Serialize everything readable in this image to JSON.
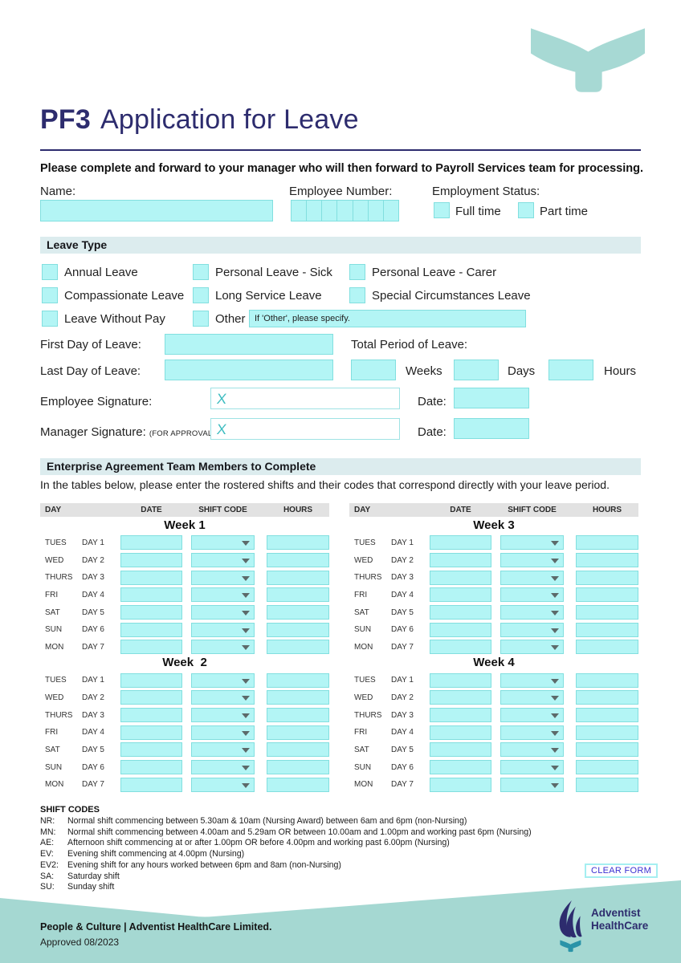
{
  "page": {
    "title_code": "PF3",
    "title_text": "Application for Leave",
    "intro": "Please complete and forward to your manager who will then forward to Payroll Services team for processing."
  },
  "personal": {
    "name_label": "Name:",
    "employee_number_label": "Employee Number:",
    "employee_number_cells": 7,
    "employment_status_label": "Employment Status:",
    "full_time_label": "Full time",
    "part_time_label": "Part time"
  },
  "leave_type": {
    "header": "Leave Type",
    "options": [
      "Annual Leave",
      "Personal Leave - Sick",
      "Personal Leave - Carer",
      "Compassionate Leave",
      "Long Service Leave",
      "Special Circumstances Leave",
      "Leave Without Pay",
      "Other"
    ],
    "other_placeholder": "If 'Other', please specify."
  },
  "dates": {
    "first_day_label": "First Day of Leave:",
    "last_day_label": "Last Day of Leave:",
    "total_period_label": "Total Period of Leave:",
    "weeks_label": "Weeks",
    "days_label": "Days",
    "hours_label": "Hours"
  },
  "signatures": {
    "employee_label": "Employee Signature:",
    "manager_label": "Manager Signature:",
    "manager_note": "(FOR APPROVAL)",
    "date_label": "Date:",
    "x_mark": "X"
  },
  "roster": {
    "header": "Enterprise Agreement Team Members to Complete",
    "instructions": "In the tables below, please enter the rostered shifts and their codes that correspond directly with your leave period.",
    "columns": [
      "DAY",
      "DATE",
      "SHIFT CODE",
      "HOURS"
    ],
    "days": [
      {
        "day": "TUES",
        "num": "DAY 1"
      },
      {
        "day": "WED",
        "num": "DAY 2"
      },
      {
        "day": "THURS",
        "num": "DAY 3"
      },
      {
        "day": "FRI",
        "num": "DAY 4"
      },
      {
        "day": "SAT",
        "num": "DAY 5"
      },
      {
        "day": "SUN",
        "num": "DAY 6"
      },
      {
        "day": "MON",
        "num": "DAY 7"
      }
    ],
    "tables": [
      {
        "weeks": [
          "Week 1",
          "Week  2"
        ]
      },
      {
        "weeks": [
          "Week 3",
          "Week 4"
        ]
      }
    ]
  },
  "shift_codes": {
    "header": "SHIFT CODES",
    "items": [
      {
        "code": "NR:",
        "desc": "Normal shift commencing between 5.30am & 10am (Nursing Award) between 6am and 6pm (non-Nursing)"
      },
      {
        "code": "MN:",
        "desc": "Normal shift commencing between 4.00am and 5.29am OR between 10.00am and 1.00pm and working past 6pm (Nursing)"
      },
      {
        "code": "AE:",
        "desc": "Afternoon shift commencing at or after 1.00pm OR before 4.00pm and working past 6.00pm (Nursing)"
      },
      {
        "code": "EV:",
        "desc": "Evening shift commencing at 4.00pm (Nursing)"
      },
      {
        "code": "EV2:",
        "desc": "Evening shift for any hours worked between 6pm and 8am (non-Nursing)"
      },
      {
        "code": "SA:",
        "desc": "Saturday shift"
      },
      {
        "code": "SU:",
        "desc": "Sunday shift"
      }
    ]
  },
  "actions": {
    "clear_form": "CLEAR FORM"
  },
  "footer": {
    "line1": "People & Culture | Adventist HealthCare Limited.",
    "line2": "Approved 08/2023",
    "logo_line1": "Adventist",
    "logo_line2": "HealthCare"
  },
  "colors": {
    "navy": "#2d2c6e",
    "field_cyan": "#b3f5f5",
    "field_border": "#82dfdf",
    "section_bar": "#dcecee",
    "table_head": "#e2e2e2",
    "footer_teal": "#a5d8d2",
    "logo_teal": "#2a93a8",
    "clear_btn_text": "#3a2fd1"
  }
}
